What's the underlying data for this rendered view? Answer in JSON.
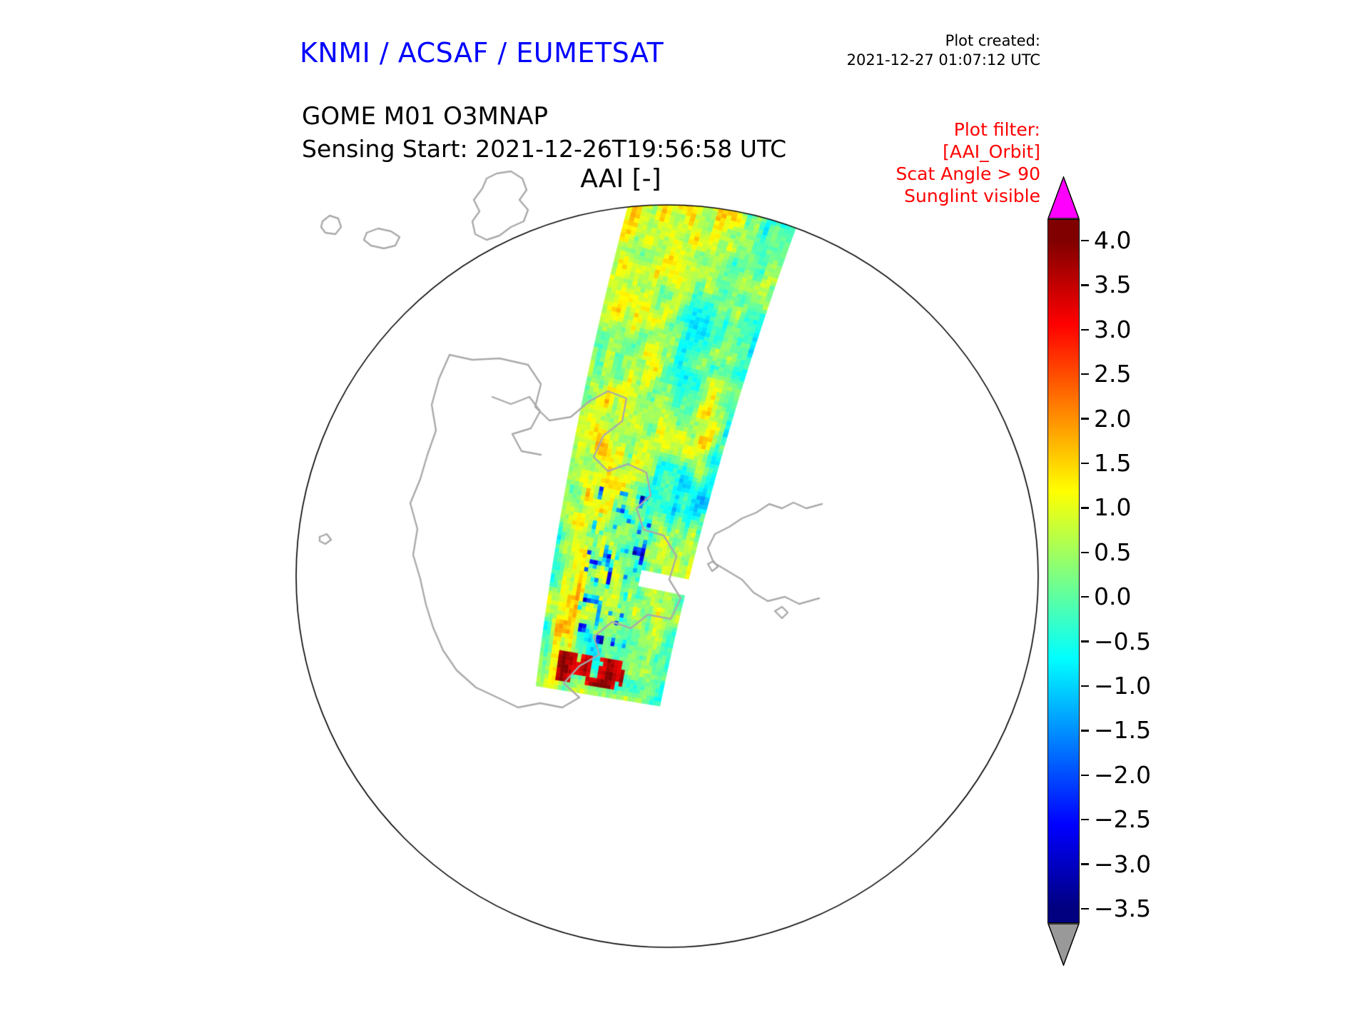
{
  "header": {
    "brand": "KNMI / ACSAF / EUMETSAT",
    "plot_created_label": "Plot created:",
    "plot_created_timestamp": "2021-12-27 01:07:12 UTC"
  },
  "product": {
    "name": "GOME M01 O3MNAP",
    "sensing_start": "Sensing Start: 2021-12-26T19:56:58 UTC"
  },
  "plot_filter": {
    "title": "Plot filter:",
    "lines": [
      "[AAI_Orbit]",
      "Scat Angle > 90",
      "Sunglint visible"
    ]
  },
  "map": {
    "title": "AAI [-]"
  },
  "colors": {
    "brand_blue": "#0000ff",
    "filter_red": "#ff0000",
    "coastline_gray": "#aaaaaa",
    "map_outline": "#000000"
  },
  "chart_data": {
    "type": "heatmap",
    "title": "AAI [-]",
    "subtitle": "GOME M01 O3MNAP — Sensing Start: 2021-12-26T19:56:58 UTC",
    "projection": "south polar stereographic view with Antarctica coastlines",
    "colorbar": {
      "label": "AAI [-]",
      "range": [
        -3.5,
        4.0
      ],
      "ticks": [
        "4.0",
        "3.5",
        "3.0",
        "2.5",
        "2.0",
        "1.5",
        "1.0",
        "0.5",
        "0.0",
        "−0.5",
        "−1.0",
        "−1.5",
        "−2.0",
        "−2.5",
        "−3.0",
        "−3.5"
      ],
      "colormap": "jet",
      "colormap_stops": [
        {
          "frac": 0.0,
          "color": "#000080"
        },
        {
          "frac": 0.125,
          "color": "#0000ff"
        },
        {
          "frac": 0.375,
          "color": "#00ffff"
        },
        {
          "frac": 0.625,
          "color": "#ffff00"
        },
        {
          "frac": 0.875,
          "color": "#ff0000"
        },
        {
          "frac": 1.0,
          "color": "#800000"
        }
      ],
      "over_color": "#ff00ff",
      "under_color": "#999999"
    },
    "swath": {
      "description": "Single orbit swath curving from the top of the projection down to near the pole; AAI values mostly between −1.5 and 1.5 (greens/cyans/yellows) with scattered blue lows and a small arc of high values near the swath end",
      "typical_value_range": [
        -1.5,
        1.5
      ],
      "max_values_observed": 3.5
    }
  }
}
